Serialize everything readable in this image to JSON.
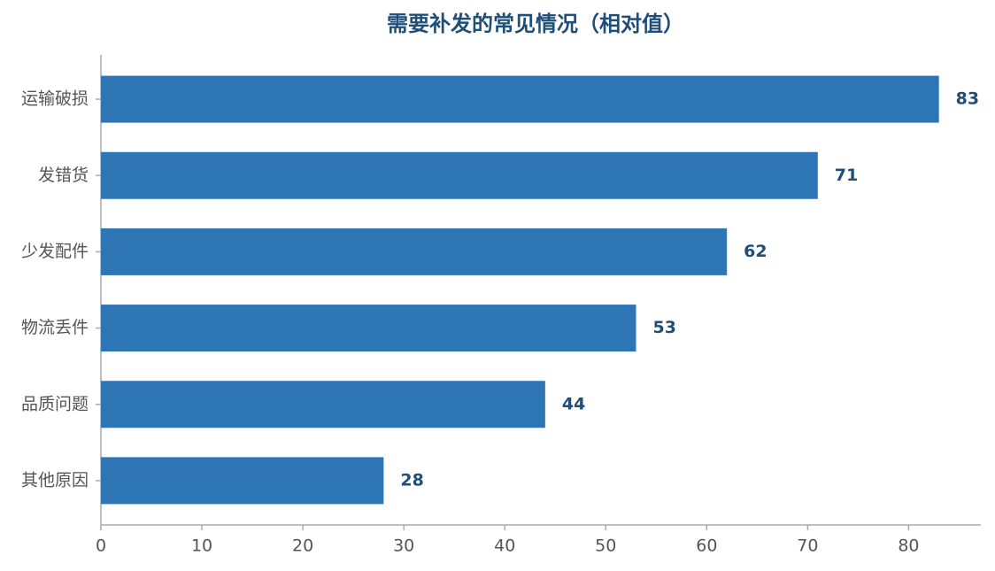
{
  "chart_data": {
    "type": "barh",
    "title": "需要补发的常见情况（相对值）",
    "categories": [
      "运输破损",
      "发错货",
      "少发配件",
      "物流丢件",
      "品质问题",
      "其他原因"
    ],
    "values": [
      83,
      71,
      62,
      53,
      44,
      28
    ],
    "color": "#2e75b6",
    "xlim": [
      0,
      87.15
    ],
    "xticks": [
      0,
      10,
      20,
      30,
      40,
      50,
      60,
      70,
      80
    ],
    "grid": false
  }
}
